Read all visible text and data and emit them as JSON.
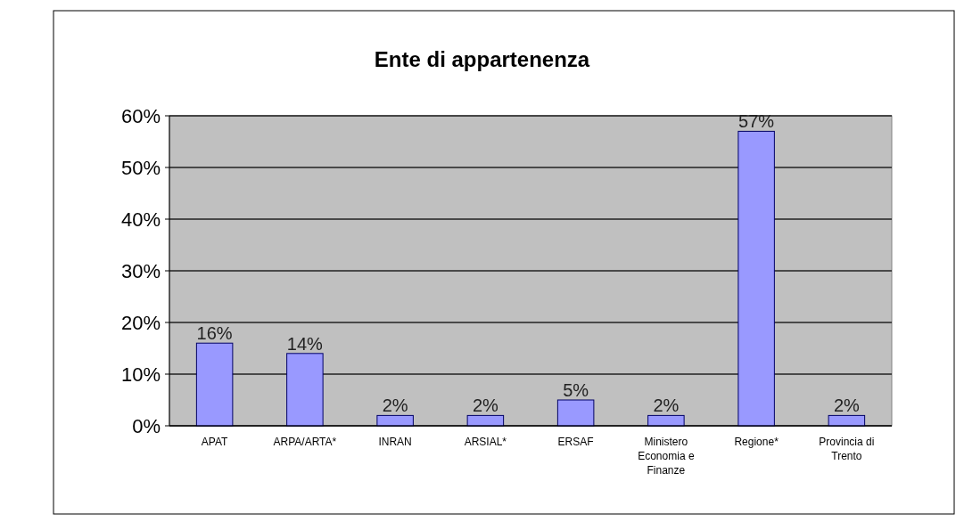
{
  "chart_data": {
    "type": "bar",
    "title": "Ente di appartenenza",
    "categories": [
      "APAT",
      "ARPA/ARTA*",
      "INRAN",
      "ARSIAL*",
      "ERSAF",
      "Ministero Economia e Finanze",
      "Regione*",
      "Provincia di Trento"
    ],
    "values": [
      16,
      14,
      2,
      2,
      5,
      2,
      57,
      2
    ],
    "value_labels": [
      "16%",
      "14%",
      "2%",
      "2%",
      "5%",
      "2%",
      "57%",
      "2%"
    ],
    "color": "#9999ff",
    "ylim": [
      0,
      60
    ],
    "yticks": [
      {
        "value": 0,
        "label": "0%"
      },
      {
        "value": 10,
        "label": "10%"
      },
      {
        "value": 20,
        "label": "20%"
      },
      {
        "value": 30,
        "label": "30%"
      },
      {
        "value": 40,
        "label": "40%"
      },
      {
        "value": 50,
        "label": "50%"
      },
      {
        "value": 60,
        "label": "60%"
      }
    ],
    "grid": "y"
  }
}
